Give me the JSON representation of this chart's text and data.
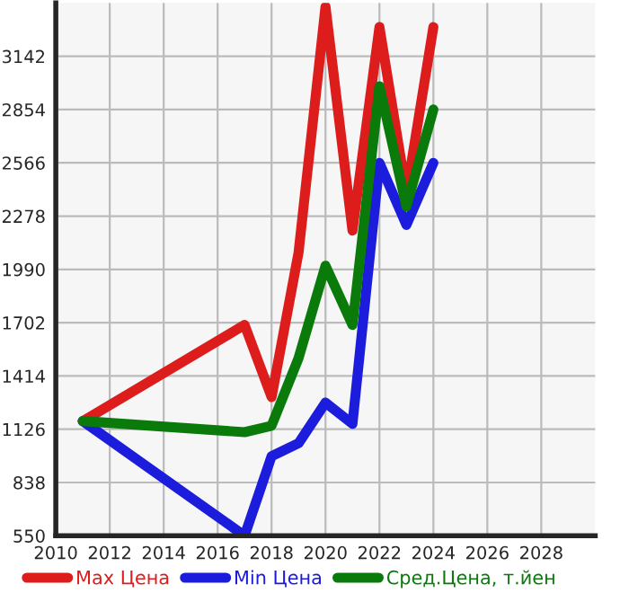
{
  "chart_data": {
    "type": "line",
    "x": [
      2011,
      2017,
      2018,
      2019,
      2020,
      2021,
      2022,
      2023,
      2024
    ],
    "series": [
      {
        "name": "Max Цена",
        "color": "#dd1c1c",
        "values": [
          1170,
          1690,
          1300,
          2080,
          3410,
          2200,
          3300,
          2400,
          3300
        ]
      },
      {
        "name": "Min Цена",
        "color": "#1c1cdd",
        "values": [
          1170,
          550,
          980,
          1050,
          1270,
          1155,
          2566,
          2230,
          2566
        ]
      },
      {
        "name": "Сред.Цена, т.йен",
        "color": "#0a7a0a",
        "values": [
          1170,
          1110,
          1145,
          1510,
          2010,
          1690,
          2980,
          2330,
          2854
        ]
      }
    ],
    "xlim": [
      2010,
      2030
    ],
    "xticks": [
      2010,
      2012,
      2014,
      2016,
      2018,
      2020,
      2022,
      2024,
      2026,
      2028
    ],
    "ylim": [
      550,
      3430
    ],
    "yticks": [
      550,
      838,
      1126,
      1414,
      1702,
      1990,
      2278,
      2566,
      2854,
      3142
    ],
    "grid": true,
    "legend": "bottom",
    "marker": "none",
    "line_style": "solid"
  }
}
